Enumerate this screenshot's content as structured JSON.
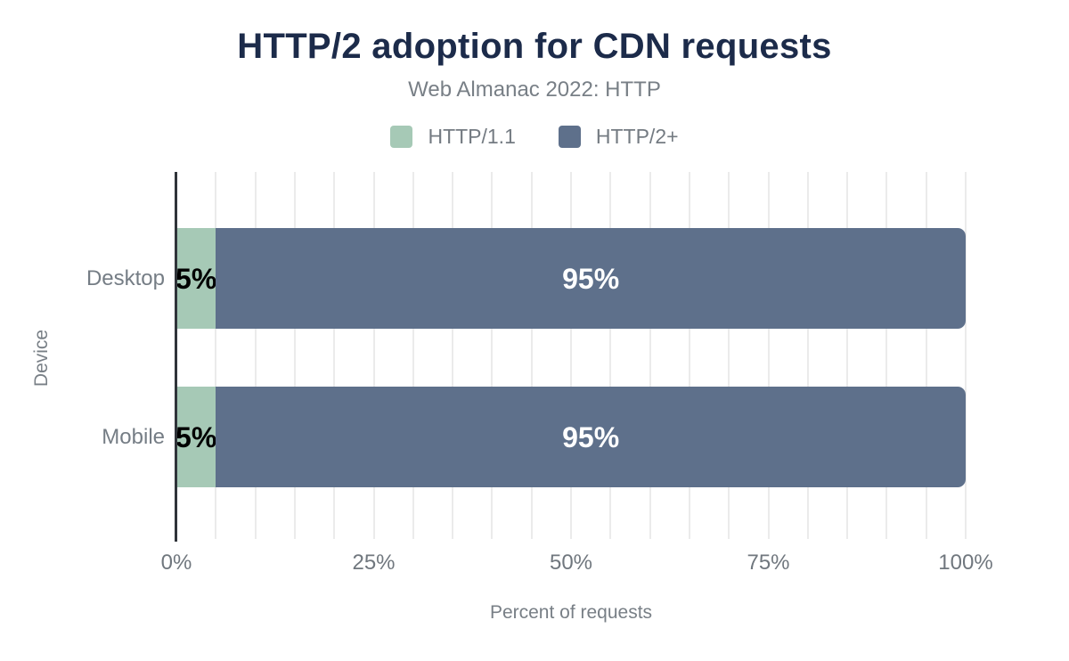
{
  "chart_data": {
    "type": "bar",
    "orientation": "horizontal",
    "stacked": true,
    "title": "HTTP/2 adoption for CDN requests",
    "subtitle": "Web Almanac 2022: HTTP",
    "categories": [
      "Desktop",
      "Mobile"
    ],
    "series": [
      {
        "name": "HTTP/1.1",
        "values": [
          5,
          5
        ],
        "color": "#a6c9b6",
        "label_color": "#000000"
      },
      {
        "name": "HTTP/2+",
        "values": [
          95,
          95
        ],
        "color": "#5e708b",
        "label_color": "#ffffff"
      }
    ],
    "value_suffix": "%",
    "xlabel": "Percent of requests",
    "ylabel": "Device",
    "xlim": [
      0,
      100
    ],
    "x_tick_values": [
      0,
      25,
      50,
      75,
      100
    ],
    "x_tick_labels": [
      "0%",
      "25%",
      "50%",
      "75%",
      "100%"
    ],
    "grid_step": 5,
    "grid_on": true,
    "legend_position": "top",
    "colors": {
      "title": "#1c2b4a",
      "muted_text": "#787f86",
      "axis_line": "#30343a",
      "gridline": "#ebebeb"
    }
  }
}
